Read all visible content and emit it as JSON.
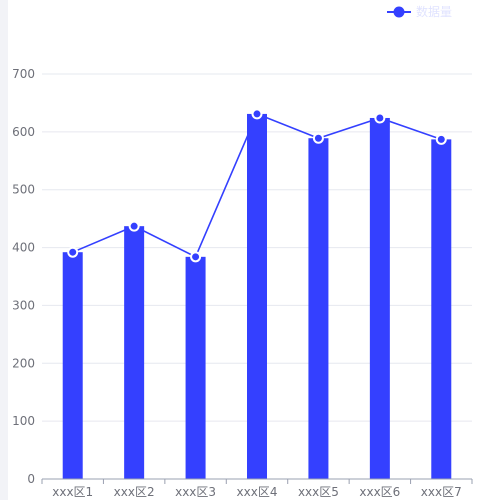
{
  "chart_data": {
    "type": "bar",
    "categories": [
      "xxx区1",
      "xxx区2",
      "xxx区3",
      "xxx区4",
      "xxx区5",
      "xxx区6",
      "xxx区7"
    ],
    "series": [
      {
        "type": "bar",
        "values": [
          392,
          437,
          384,
          631,
          589,
          624,
          587
        ]
      },
      {
        "type": "line",
        "name": "数据量",
        "values": [
          392,
          437,
          384,
          631,
          589,
          624,
          587
        ]
      }
    ],
    "ylim": [
      0,
      700
    ],
    "yticks": [
      0,
      100,
      200,
      300,
      400,
      500,
      600,
      700
    ],
    "grid": true,
    "legend": "top-right",
    "colors": {
      "bar": "#3440ff",
      "line": "#3440ff",
      "grid": "#e6e8ef",
      "axis": "#9aa0b0"
    }
  }
}
